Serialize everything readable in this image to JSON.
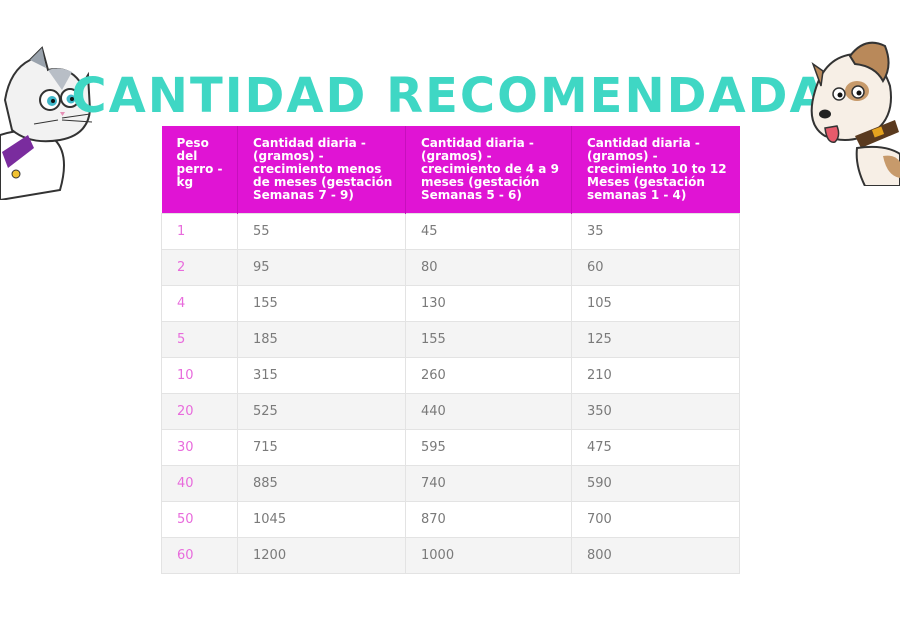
{
  "title": "CANTIDAD RECOMENDADA",
  "colors": {
    "title": "#3fd7c4",
    "header_bg": "#e014d4",
    "weight_text": "#e86bdc",
    "value_text": "#7a7a7a"
  },
  "decorations": {
    "left": "cartoon-cat-icon",
    "right": "cartoon-dog-icon"
  },
  "table": {
    "headers": [
      "Peso del perro - kg",
      "Cantidad diaria - (gramos) - crecimiento menos de meses (gestación Semanas 7 - 9)",
      "Cantidad diaria - (gramos) - crecimiento de 4 a 9 meses (gestación Semanas 5 - 6)",
      "Cantidad diaria - (gramos) - crecimiento 10 to 12 Meses (gestación semanas 1 - 4)"
    ],
    "rows": [
      [
        "1",
        "55",
        "45",
        "35"
      ],
      [
        "2",
        "95",
        "80",
        "60"
      ],
      [
        "4",
        "155",
        "130",
        "105"
      ],
      [
        "5",
        "185",
        "155",
        "125"
      ],
      [
        "10",
        "315",
        "260",
        "210"
      ],
      [
        "20",
        "525",
        "440",
        "350"
      ],
      [
        "30",
        "715",
        "595",
        "475"
      ],
      [
        "40",
        "885",
        "740",
        "590"
      ],
      [
        "50",
        "1045",
        "870",
        "700"
      ],
      [
        "60",
        "1200",
        "1000",
        "800"
      ]
    ]
  }
}
